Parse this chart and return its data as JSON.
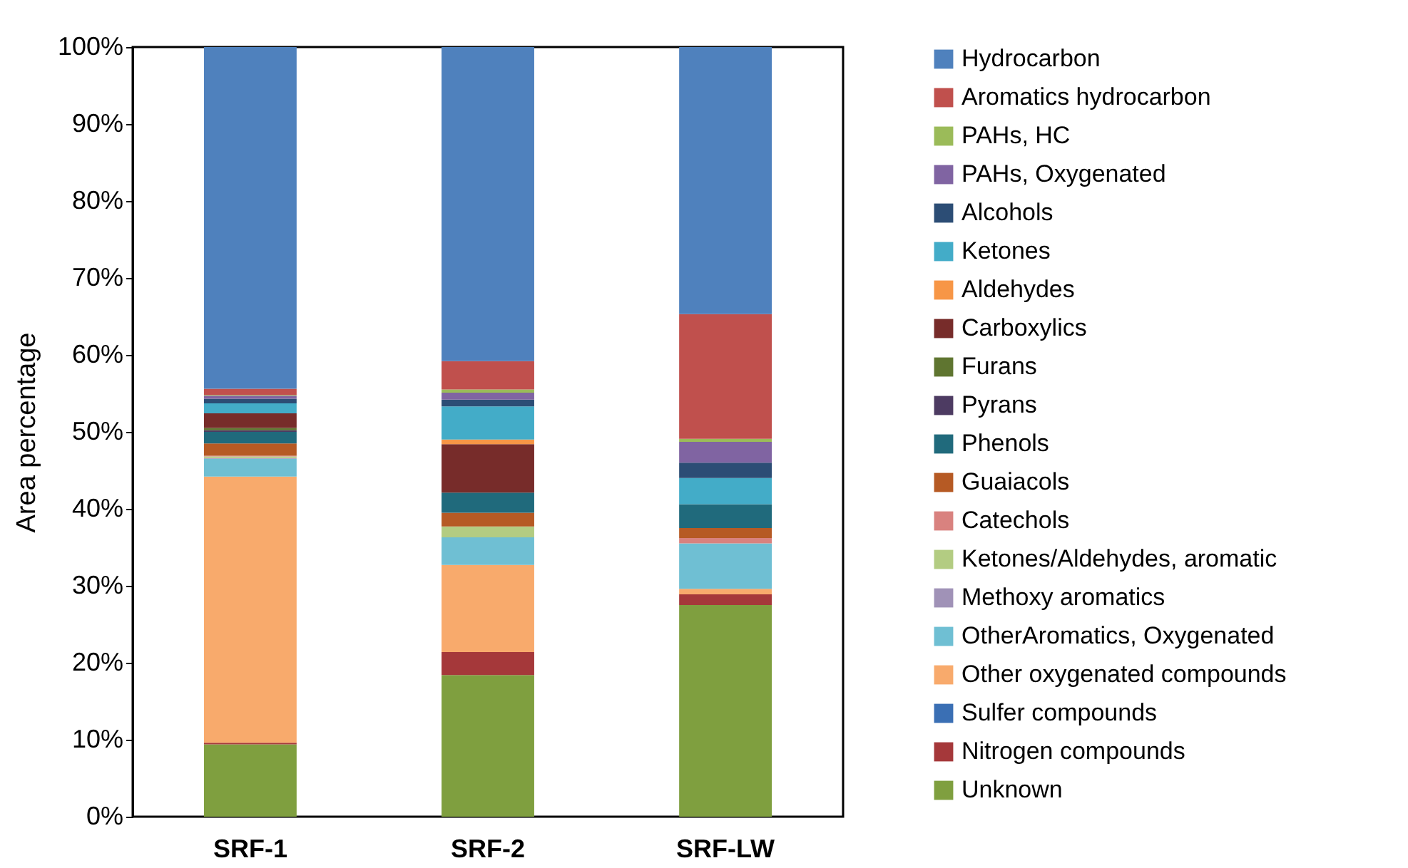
{
  "chart_data": {
    "type": "bar",
    "stacked": true,
    "ylabel": "Area percentage",
    "categories": [
      "SRF-1",
      "SRF-2",
      "SRF-LW"
    ],
    "ylim": [
      0,
      100
    ],
    "yticks": [
      {
        "value": 0,
        "label": "0%"
      },
      {
        "value": 10,
        "label": "10%"
      },
      {
        "value": 20,
        "label": "20%"
      },
      {
        "value": 30,
        "label": "30%"
      },
      {
        "value": 40,
        "label": "40%"
      },
      {
        "value": 50,
        "label": "50%"
      },
      {
        "value": 60,
        "label": "60%"
      },
      {
        "value": 70,
        "label": "70%"
      },
      {
        "value": 80,
        "label": "80%"
      },
      {
        "value": 90,
        "label": "90%"
      },
      {
        "value": 100,
        "label": "100%"
      }
    ],
    "grid": false,
    "legend": "right",
    "series": [
      {
        "name": "Unknown",
        "color": "#7f9f3f",
        "values": [
          9.4,
          18.4,
          27.5
        ]
      },
      {
        "name": "Nitrogen compounds",
        "color": "#a5383a",
        "values": [
          0.2,
          3.0,
          1.4
        ]
      },
      {
        "name": "Sulfer compounds",
        "color": "#3a6fb4",
        "values": [
          0,
          0,
          0
        ]
      },
      {
        "name": "Other oxygenated compounds",
        "color": "#f8aa6c",
        "values": [
          34.6,
          11.3,
          0.7
        ]
      },
      {
        "name": "OtherAromatics, Oxygenated",
        "color": "#6fbfd3",
        "values": [
          2.3,
          3.6,
          5.9
        ]
      },
      {
        "name": "Methoxy aromatics",
        "color": "#a092b7",
        "values": [
          0.1,
          0,
          0
        ]
      },
      {
        "name": "Ketones/Aldehydes, aromatic",
        "color": "#b3cc82",
        "values": [
          0.2,
          1.4,
          0
        ]
      },
      {
        "name": "Catechols",
        "color": "#d9827f",
        "values": [
          0.1,
          0,
          0.7
        ]
      },
      {
        "name": "Guaiacols",
        "color": "#b65a24",
        "values": [
          1.6,
          1.8,
          1.3
        ]
      },
      {
        "name": "Phenols",
        "color": "#206a7c",
        "values": [
          1.5,
          2.6,
          3.1
        ]
      },
      {
        "name": "Pyrans",
        "color": "#4d3b62",
        "values": [
          0.2,
          0,
          0
        ]
      },
      {
        "name": "Furans",
        "color": "#5f7530",
        "values": [
          0.3,
          0,
          0
        ]
      },
      {
        "name": "Carboxylics",
        "color": "#772c2a",
        "values": [
          1.9,
          6.3,
          0
        ]
      },
      {
        "name": "Aldehydes",
        "color": "#f79646",
        "values": [
          0,
          0.6,
          0
        ]
      },
      {
        "name": "Ketones",
        "color": "#43acc8",
        "values": [
          1.3,
          4.3,
          3.4
        ]
      },
      {
        "name": "Alcohols",
        "color": "#2c4d75",
        "values": [
          0.6,
          0.9,
          2.0
        ]
      },
      {
        "name": "PAHs, Oxygenated",
        "color": "#8064a2",
        "values": [
          0.4,
          0.9,
          2.7
        ]
      },
      {
        "name": "PAHs, HC",
        "color": "#9bbb59",
        "values": [
          0.1,
          0.4,
          0.4
        ]
      },
      {
        "name": "Aromatics hydrocarbon",
        "color": "#c0504d",
        "values": [
          0.8,
          3.7,
          16.2
        ]
      },
      {
        "name": "Hydrocarbon",
        "color": "#4f81bd",
        "values": [
          44.4,
          40.8,
          34.7
        ]
      }
    ]
  }
}
